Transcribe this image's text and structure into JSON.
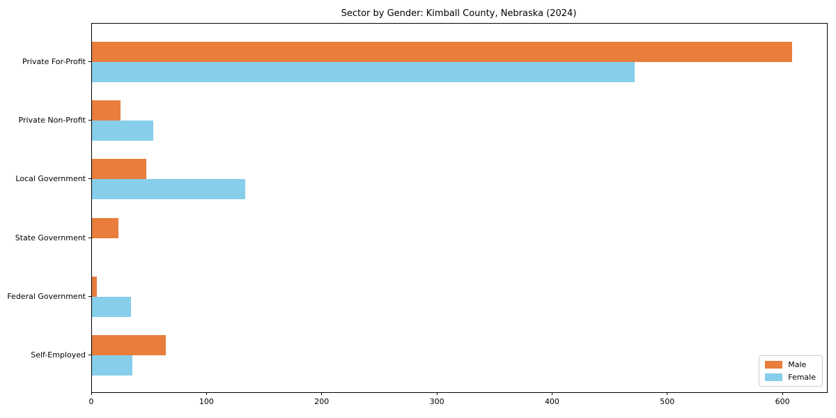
{
  "chart_data": {
    "type": "bar",
    "orientation": "horizontal",
    "title": "Sector by Gender: Kimball County, Nebraska (2024)",
    "categories": [
      "Private For-Profit",
      "Private Non-Profit",
      "Local Government",
      "State Government",
      "Federal Government",
      "Self-Employed"
    ],
    "series": [
      {
        "name": "Male",
        "color": "#e87d3c",
        "values": [
          608,
          25,
          47,
          23,
          4,
          64
        ]
      },
      {
        "name": "Female",
        "color": "#87ceeb",
        "values": [
          471,
          53,
          133,
          0,
          34,
          35
        ]
      }
    ],
    "xlabel": "",
    "ylabel": "",
    "xlim": [
      0,
      638
    ],
    "xticks": [
      0,
      100,
      200,
      300,
      400,
      500,
      600
    ],
    "grid": false,
    "legend_position": "lower right",
    "background_color": "#ffffff",
    "spine_color": "#000000"
  }
}
